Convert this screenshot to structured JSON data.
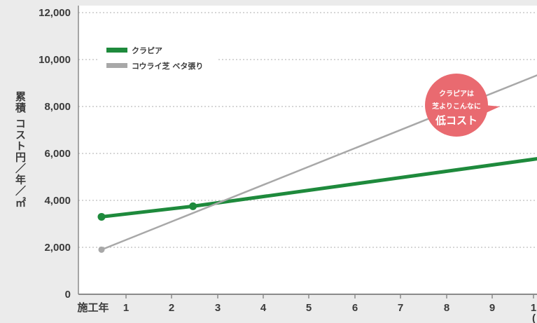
{
  "chart_data": {
    "type": "line",
    "ylabel": "累積 コスト円／年／㎡",
    "ylim": [
      0,
      12000
    ],
    "y_ticks": [
      "0",
      "2,000",
      "4,000",
      "6,000",
      "8,000",
      "10,000",
      "12,000"
    ],
    "x_tick_labels": [
      "施工年",
      "1",
      "2",
      "3",
      "4",
      "5",
      "6",
      "7",
      "8",
      "9",
      "1"
    ],
    "x_unit_fragment": "(",
    "grid": true,
    "legend_position": "top-left",
    "series": [
      {
        "name": "クラピア",
        "color": "#1e8a3c",
        "x": [
          -0.5,
          1.5,
          9.5
        ],
        "values": [
          3300,
          3750,
          5900
        ]
      },
      {
        "name": "コウライ芝 ベタ張り",
        "color": "#a8a8a8",
        "x": [
          -0.5,
          9.5
        ],
        "values": [
          1900,
          9700
        ]
      }
    ],
    "callout": {
      "lines": [
        "クラピアは",
        "芝よりこんなに",
        "低コスト"
      ],
      "color": "#e96a70",
      "arrow_from": 9700,
      "arrow_to": 5900,
      "arrow_x": 9.5
    }
  }
}
